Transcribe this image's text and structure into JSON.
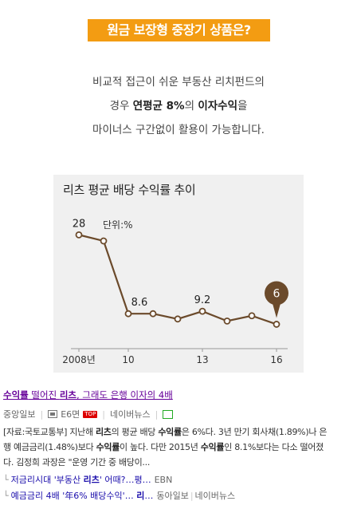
{
  "hero": {
    "title": "원금 보장형 중장기 상품은?"
  },
  "intro": {
    "line1": "비교적 접근이 쉬운 부동산 리치펀드의",
    "line2_pre": "경우 ",
    "line2_bold1": "연평균 8%",
    "line2_mid": "의 ",
    "line2_bold2": "이자수익",
    "line2_post": "을",
    "line3": "마이너스 구간없이 활용이 가능합니다."
  },
  "chart_data": {
    "type": "line",
    "title": "리츠 평균 배당 수익률 추이",
    "unit_label": "단위:%",
    "x": [
      2008,
      2009,
      2010,
      2011,
      2012,
      2013,
      2014,
      2015,
      2016
    ],
    "values": [
      28,
      26.5,
      8.6,
      8.6,
      7.3,
      9.2,
      6.8,
      8.1,
      6
    ],
    "value_labels": [
      "28",
      "",
      "8.6",
      "",
      "",
      "9.2",
      "",
      "",
      "6"
    ],
    "tick_labels": [
      "2008년",
      "10",
      "13",
      "16"
    ],
    "tick_x": [
      2008,
      2010,
      2013,
      2016
    ],
    "ylim": [
      0,
      32
    ],
    "colors": {
      "line": "#6b4a2b",
      "point_fill": "#ffffff",
      "badge": "#6b4a2b"
    }
  },
  "news": {
    "title_p1": "수익률",
    "title_p2": " 떨어진 ",
    "title_p3": "리츠",
    "title_p4": ", 그래도 은행 이자의 4배",
    "source": "중앙일보",
    "page": "E6면",
    "badge": "TOP",
    "portal": "네이버뉴스",
    "body_l1_a": "[자료:국토교통부] 지난해 ",
    "body_l1_b": "리츠",
    "body_l1_c": "의 평균 배당 ",
    "body_l1_d": "수익률",
    "body_l1_e": "은 6%다. 3년 만기 회사채(1.89%)나 은",
    "body_l2_a": "행 예금금리(1.48%)보다 ",
    "body_l2_b": "수익률",
    "body_l2_c": "이 높다. 다만 2015년 ",
    "body_l2_d": "수익률",
    "body_l2_e": "인 8.1%보다는 다소 떨어졌",
    "body_l3": "다. 김정희 과장은 \"운영 기간 중 배당이...",
    "sub1_a": "저금리시대 '부동산 ",
    "sub1_b": "리츠",
    "sub1_c": "' 어때?…평…",
    "sub1_src": "EBN",
    "sub2_a": "예금금리 4배 '年6% 배당수익'… ",
    "sub2_b": "리",
    "sub2_c": "…",
    "sub2_src1": "동아일보",
    "sub2_src2": "네이버뉴스"
  }
}
